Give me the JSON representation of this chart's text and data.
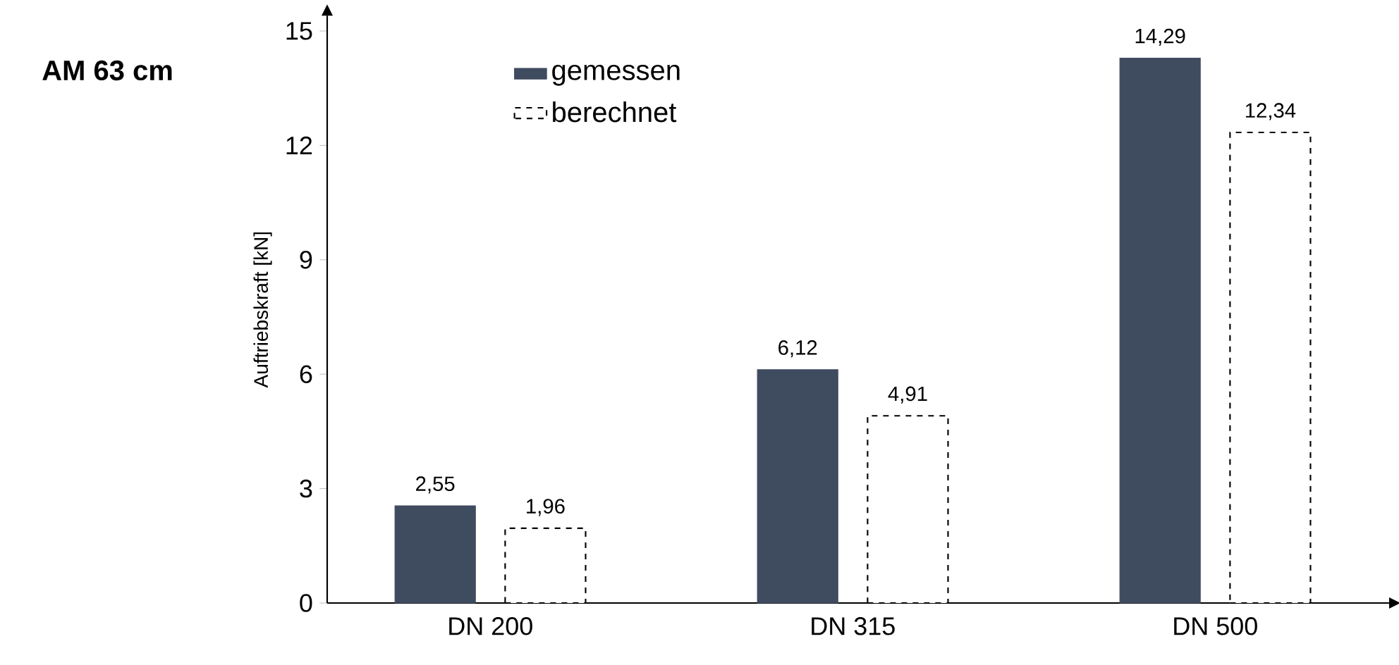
{
  "chart_data": {
    "type": "bar",
    "title": "AM 63 cm",
    "ylabel": "Auftriebskraft [kN]",
    "categories": [
      "DN 200",
      "DN 315",
      "DN 500"
    ],
    "series": [
      {
        "name": "gemessen",
        "color": "#3f4b5f",
        "values": [
          2.55,
          6.12,
          14.29
        ],
        "value_labels": [
          "2,55",
          "6,12",
          "14,29"
        ]
      },
      {
        "name": "berechnet",
        "color": "#ffffff",
        "line_style": "dashed",
        "values": [
          1.96,
          4.91,
          12.34
        ],
        "value_labels": [
          "1,96",
          "4,91",
          "12,34"
        ]
      }
    ],
    "ylim": [
      0,
      15.4
    ],
    "yticks": [
      0,
      3,
      6,
      9,
      12,
      15
    ],
    "legend": "top left",
    "grid": false
  }
}
